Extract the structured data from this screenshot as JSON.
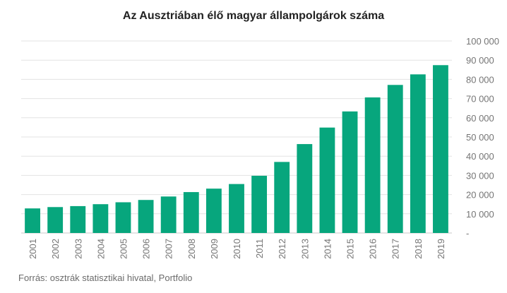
{
  "title": "Az Ausztriában élő magyar állampolgárok száma",
  "source": "Forrás: osztrák statisztikai hivatal, Portfolio",
  "colors": {
    "bar": "#07a67d",
    "grid": "#e3e3e3",
    "axis_text": "#757575"
  },
  "chart_data": {
    "type": "bar",
    "title": "Az Ausztriában élő magyar állampolgárok száma",
    "categories": [
      "2001",
      "2002",
      "2003",
      "2004",
      "2005",
      "2006",
      "2007",
      "2008",
      "2009",
      "2010",
      "2011",
      "2012",
      "2013",
      "2014",
      "2015",
      "2016",
      "2017",
      "2018",
      "2019"
    ],
    "values": [
      12800,
      13500,
      14000,
      15000,
      16000,
      17200,
      19000,
      21300,
      23100,
      25500,
      29800,
      37000,
      46300,
      54900,
      63300,
      70600,
      77100,
      82600,
      87400
    ],
    "y_ticks": [
      "-",
      "10 000",
      "20 000",
      "30 000",
      "40 000",
      "50 000",
      "60 000",
      "70 000",
      "80 000",
      "90 000",
      "100 000"
    ],
    "ylim": [
      0,
      100000
    ],
    "y_axis_side": "right",
    "grid": true,
    "xlabel": "",
    "ylabel": ""
  }
}
